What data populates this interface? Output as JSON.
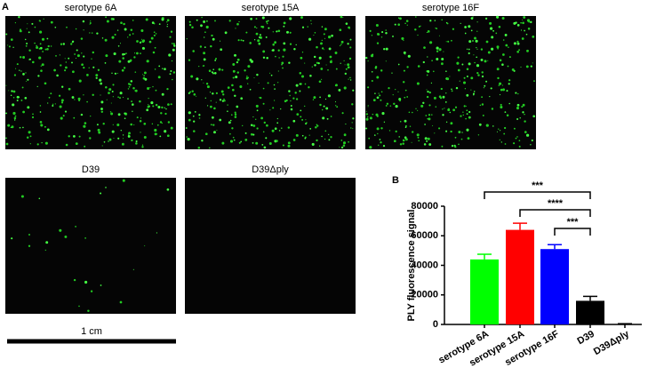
{
  "panel_a": {
    "label": "A",
    "images": [
      {
        "title": "serotype 6A"
      },
      {
        "title": "serotype 15A"
      },
      {
        "title": "serotype 16F"
      },
      {
        "title": "D39"
      },
      {
        "title": "D39Δply"
      }
    ],
    "scale_bar": "1 cm"
  },
  "panel_b": {
    "label": "B"
  },
  "chart_data": {
    "type": "bar",
    "ylabel": "PLY fluorescence signal",
    "categories": [
      "serotype 6A",
      "serotype 15A",
      "serotype 16F",
      "D39",
      "D39Δply"
    ],
    "values": [
      44000,
      64000,
      51000,
      16000,
      300
    ],
    "errors": [
      3500,
      4500,
      3000,
      3000,
      200
    ],
    "colors": [
      "#00ff00",
      "#ff0000",
      "#0000ff",
      "#000000",
      "#000000"
    ],
    "ylim": [
      0,
      80000
    ],
    "yticks": [
      0,
      20000,
      40000,
      60000,
      80000
    ],
    "annotations": [
      "***",
      "****",
      "***"
    ]
  }
}
